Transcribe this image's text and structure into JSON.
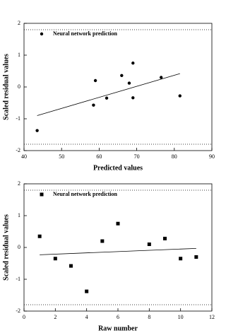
{
  "chart_data": [
    {
      "type": "scatter",
      "xlabel": "Predicted values",
      "ylabel": "Scaled residual values",
      "xlim": [
        40,
        90
      ],
      "ylim": [
        -2,
        2
      ],
      "xticks": [
        40,
        50,
        60,
        70,
        80,
        90
      ],
      "yticks": [
        -2,
        -1,
        0,
        1,
        2
      ],
      "legend": "upper left",
      "reference_lines": [
        -1.8,
        1.8
      ],
      "series": [
        {
          "name": "Neural network prediction",
          "marker": "circle",
          "color": "#000000",
          "x": [
            43.5,
            58.5,
            59,
            62,
            66,
            68,
            69,
            69,
            76.5,
            81.5
          ],
          "y": [
            -1.37,
            -0.57,
            0.2,
            -0.35,
            0.36,
            0.12,
            0.75,
            -0.34,
            0.3,
            -0.28
          ]
        }
      ],
      "trend_line": {
        "x": [
          43.5,
          81.5
        ],
        "y": [
          -0.9,
          0.42
        ]
      }
    },
    {
      "type": "scatter",
      "xlabel": "Raw number",
      "ylabel": "Scaled residual values",
      "xlim": [
        0,
        12
      ],
      "ylim": [
        -2,
        2
      ],
      "xticks": [
        0,
        2,
        4,
        6,
        8,
        10,
        12
      ],
      "yticks": [
        -2,
        -1,
        0,
        1,
        2
      ],
      "legend": "upper left",
      "reference_lines": [
        -1.8,
        1.8
      ],
      "series": [
        {
          "name": "Neural network prediction",
          "marker": "square",
          "color": "#000000",
          "x": [
            1,
            2,
            3,
            4,
            5,
            6,
            8,
            9,
            10,
            11
          ],
          "y": [
            0.35,
            -0.35,
            -0.58,
            -1.38,
            0.2,
            0.75,
            0.1,
            0.28,
            -0.35,
            -0.3
          ]
        }
      ],
      "trend_line": {
        "x": [
          1,
          11
        ],
        "y": [
          -0.23,
          -0.03
        ]
      }
    }
  ]
}
